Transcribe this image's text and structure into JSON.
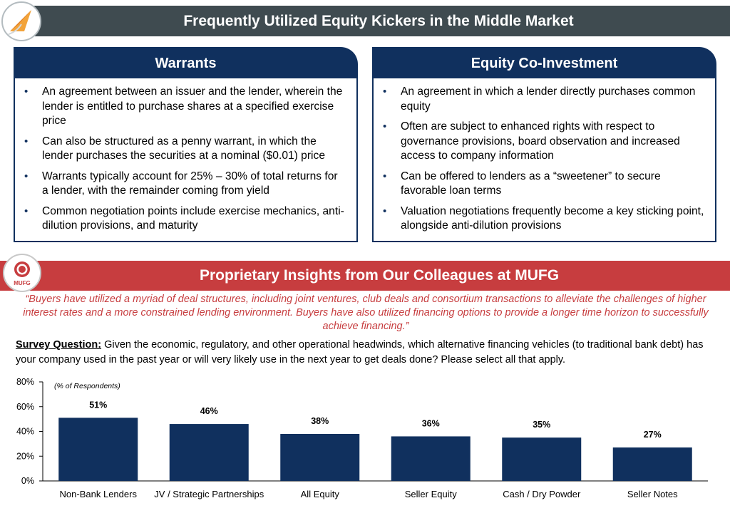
{
  "header": {
    "title": "Frequently Utilized Equity Kickers in the Middle Market",
    "logo_icon": "paper-plane-logo-icon"
  },
  "warrants": {
    "title": "Warrants",
    "bullets": [
      "An agreement between an issuer and the lender, wherein the lender is entitled to purchase shares at a specified exercise price",
      "Can also be structured as a penny warrant, in which the lender purchases the securities at a nominal ($0.01) price",
      "Warrants typically account for 25% – 30% of total returns for a lender, with the remainder coming from yield",
      "Common negotiation points include exercise mechanics, anti-dilution provisions, and maturity"
    ]
  },
  "coinvest": {
    "title": "Equity Co-Investment",
    "bullets": [
      "An agreement in which a lender directly purchases common equity",
      "Often are subject to enhanced rights with respect to governance provisions, board observation and increased access to company information",
      "Can be offered to lenders as a “sweetener” to secure favorable loan terms",
      "Valuation negotiations frequently become a key sticking point, alongside anti-dilution provisions"
    ]
  },
  "mufg": {
    "title": "Proprietary Insights from Our Colleagues at MUFG",
    "logo_text": "MUFG",
    "quote": "“Buyers have utilized a myriad of deal structures, including joint ventures, club deals and consortium transactions to alleviate the challenges of higher interest rates and a more constrained lending environment. Buyers have also utilized financing options to provide a longer time horizon to successfully achieve financing.”"
  },
  "survey": {
    "label": "Survey Question:",
    "text": " Given the economic, regulatory, and other operational headwinds, which alternative financing vehicles (to traditional bank debt) has your company used in the past year or will very likely use in the next year to get deals done? Please select all that apply."
  },
  "colors": {
    "navy": "#10305e",
    "banner_gray": "#3f4b50",
    "mufg_red": "#c73d3f"
  },
  "chart_data": {
    "type": "bar",
    "title": "",
    "ylabel": "(% of Respondents)",
    "xlabel": "",
    "ylim": [
      0,
      80
    ],
    "yticks": [
      0,
      20,
      40,
      60,
      80
    ],
    "ytick_labels": [
      "0%",
      "20%",
      "40%",
      "60%",
      "80%"
    ],
    "categories": [
      "Non-Bank Lenders",
      "JV / Strategic Partnerships",
      "All Equity",
      "Seller Equity",
      "Cash / Dry Powder",
      "Seller Notes"
    ],
    "values": [
      51,
      46,
      38,
      36,
      35,
      27
    ],
    "value_labels": [
      "51%",
      "46%",
      "38%",
      "36%",
      "35%",
      "27%"
    ],
    "grid": false,
    "legend": "none"
  }
}
